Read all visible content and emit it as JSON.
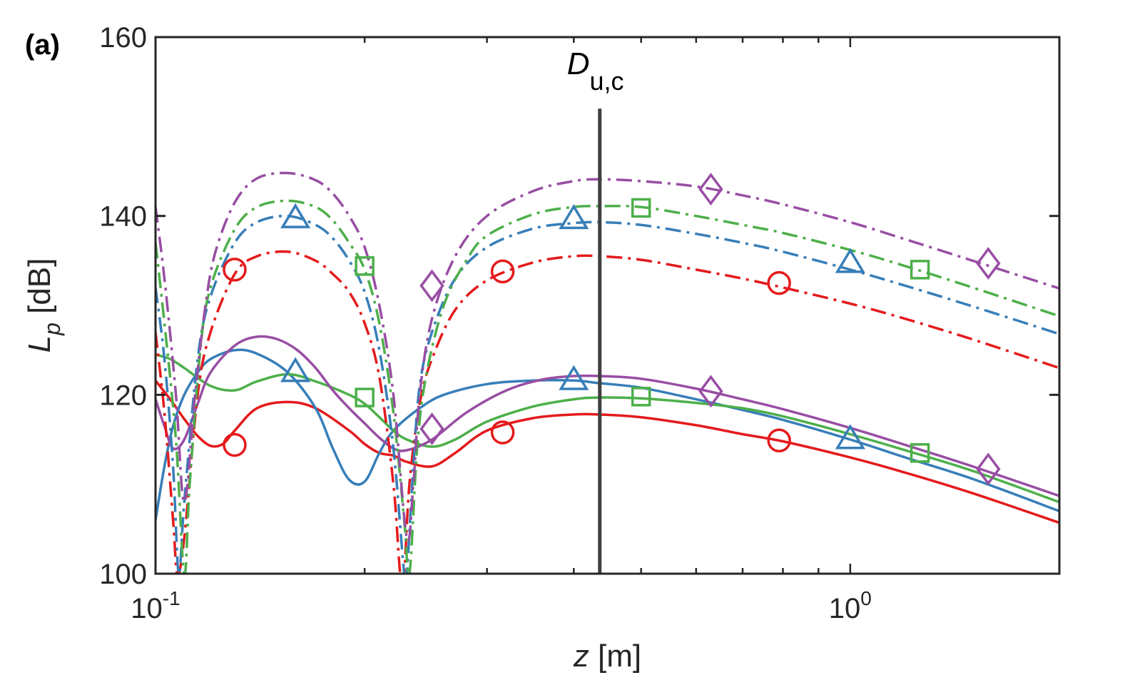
{
  "chart_data": {
    "type": "line",
    "panel_label": "(a)",
    "xscale": "log",
    "xlim": [
      0.1,
      2.0
    ],
    "ylim": [
      100,
      160
    ],
    "yticks": [
      100,
      120,
      140,
      160
    ],
    "xticks": [
      {
        "value": 0.1,
        "base": "10",
        "exp": "-1"
      },
      {
        "value": 1.0,
        "base": "10",
        "exp": "0"
      }
    ],
    "xlabel": {
      "var": "z",
      "unit": " [m]"
    },
    "ylabel": {
      "var": "L",
      "sub": "p",
      "unit": " [dB]"
    },
    "vline": {
      "x": 0.436,
      "y_top": 152,
      "label": "D",
      "label_sub": "u,c"
    },
    "series": [
      {
        "name": "red-solid",
        "color": "#e41a1c",
        "style": "solid",
        "marker": "circle",
        "x": [
          0.1,
          0.105,
          0.11,
          0.115,
          0.12,
          0.125,
          0.13,
          0.14,
          0.155,
          0.17,
          0.19,
          0.2,
          0.21,
          0.22,
          0.23,
          0.25,
          0.27,
          0.3,
          0.35,
          0.4,
          0.436,
          0.5,
          0.6,
          0.7,
          0.8,
          1.0,
          1.2,
          1.5,
          2.0
        ],
        "y": [
          121.6,
          119.5,
          117.3,
          115.4,
          114.3,
          114.5,
          116.0,
          118.5,
          119.2,
          118.5,
          116.0,
          114.5,
          113.5,
          113.2,
          112.5,
          112.0,
          113.5,
          116.0,
          117.4,
          117.8,
          117.8,
          117.5,
          116.6,
          115.6,
          114.8,
          113.0,
          111.3,
          109.0,
          105.7
        ],
        "markers_x": [
          0.13,
          0.316,
          0.79
        ],
        "markers_y": [
          114.4,
          115.8,
          114.9
        ]
      },
      {
        "name": "blue-solid",
        "color": "#377eb8",
        "style": "solid",
        "marker": "triangle",
        "x": [
          0.1,
          0.103,
          0.106,
          0.11,
          0.115,
          0.12,
          0.13,
          0.14,
          0.155,
          0.17,
          0.18,
          0.19,
          0.2,
          0.21,
          0.22,
          0.24,
          0.26,
          0.3,
          0.35,
          0.4,
          0.436,
          0.5,
          0.6,
          0.7,
          0.8,
          1.0,
          1.2,
          1.5,
          2.0
        ],
        "y": [
          106.0,
          112.0,
          116.5,
          120.0,
          122.5,
          124.0,
          125.0,
          124.6,
          122.5,
          118.5,
          114.0,
          110.5,
          110.3,
          113.5,
          116.0,
          118.5,
          120.0,
          121.2,
          121.6,
          121.6,
          121.3,
          120.8,
          119.5,
          118.3,
          117.2,
          115.0,
          113.0,
          110.6,
          107.0
        ],
        "markers_x": [
          0.159,
          0.4,
          1.0
        ],
        "markers_y": [
          122.6,
          121.7,
          115.1
        ]
      },
      {
        "name": "green-solid",
        "color": "#4daf4a",
        "style": "solid",
        "marker": "square",
        "x": [
          0.1,
          0.105,
          0.11,
          0.12,
          0.13,
          0.14,
          0.155,
          0.17,
          0.19,
          0.2,
          0.21,
          0.22,
          0.23,
          0.25,
          0.27,
          0.3,
          0.35,
          0.4,
          0.436,
          0.5,
          0.6,
          0.7,
          0.8,
          1.0,
          1.2,
          1.5,
          2.0
        ],
        "y": [
          124.5,
          124.0,
          123.0,
          121.0,
          120.5,
          121.5,
          122.3,
          121.5,
          120.0,
          119.0,
          117.5,
          116.0,
          115.0,
          114.2,
          115.0,
          117.0,
          118.7,
          119.5,
          119.7,
          119.6,
          119.1,
          118.5,
          117.6,
          115.6,
          113.8,
          111.5,
          108.0
        ],
        "markers_x": [
          0.2,
          0.5,
          1.26
        ],
        "markers_y": [
          119.7,
          119.8,
          113.5
        ]
      },
      {
        "name": "purple-solid",
        "color": "#984ea3",
        "style": "solid",
        "marker": "diamond",
        "x": [
          0.1,
          0.103,
          0.106,
          0.11,
          0.115,
          0.12,
          0.13,
          0.14,
          0.15,
          0.16,
          0.17,
          0.18,
          0.19,
          0.2,
          0.21,
          0.22,
          0.23,
          0.25,
          0.28,
          0.32,
          0.36,
          0.4,
          0.436,
          0.5,
          0.6,
          0.7,
          0.8,
          1.0,
          1.2,
          1.5,
          2.0
        ],
        "y": [
          119.5,
          116.5,
          114.0,
          115.0,
          119.0,
          122.5,
          125.5,
          126.5,
          126.2,
          125.0,
          123.0,
          120.5,
          118.5,
          116.8,
          115.2,
          114.0,
          113.8,
          115.0,
          118.0,
          120.5,
          121.7,
          122.1,
          122.1,
          121.8,
          120.7,
          119.5,
          118.4,
          116.3,
          114.4,
          112.0,
          108.7
        ],
        "markers_x": [
          0.25,
          0.63,
          1.58
        ],
        "markers_y": [
          116.2,
          120.4,
          111.7
        ]
      },
      {
        "name": "red-dashdot",
        "color": "#e41a1c",
        "style": "dashdot",
        "marker": "circle",
        "x": [
          0.1,
          0.103,
          0.106,
          0.1075,
          0.11,
          0.115,
          0.12,
          0.13,
          0.14,
          0.155,
          0.17,
          0.18,
          0.19,
          0.2,
          0.21,
          0.22,
          0.225,
          0.228,
          0.232,
          0.24,
          0.25,
          0.27,
          0.3,
          0.35,
          0.4,
          0.436,
          0.5,
          0.6,
          0.7,
          0.8,
          1.0,
          1.2,
          1.5,
          2.0
        ],
        "y": [
          127.0,
          118.0,
          106.0,
          100.0,
          104.0,
          120.0,
          127.0,
          133.5,
          135.5,
          136.0,
          135.0,
          133.5,
          131.5,
          128.0,
          122.0,
          110.0,
          100.0,
          100.0,
          110.0,
          119.0,
          124.0,
          129.5,
          132.8,
          134.8,
          135.5,
          135.5,
          135.1,
          134.0,
          133.0,
          132.0,
          130.2,
          128.5,
          126.2,
          123.0
        ],
        "markers_x": [
          0.13,
          0.316,
          0.79
        ],
        "markers_y": [
          134.0,
          133.8,
          132.5
        ]
      },
      {
        "name": "blue-dashdot",
        "color": "#377eb8",
        "style": "dashdot",
        "marker": "triangle",
        "x": [
          0.1,
          0.103,
          0.106,
          0.108,
          0.11,
          0.115,
          0.12,
          0.13,
          0.14,
          0.155,
          0.17,
          0.18,
          0.19,
          0.2,
          0.21,
          0.22,
          0.228,
          0.23,
          0.235,
          0.24,
          0.25,
          0.27,
          0.3,
          0.35,
          0.4,
          0.436,
          0.5,
          0.6,
          0.7,
          0.8,
          1.0,
          1.2,
          1.5,
          2.0
        ],
        "y": [
          132.0,
          124.0,
          112.0,
          100.0,
          108.0,
          124.0,
          131.0,
          137.0,
          139.3,
          140.0,
          139.0,
          137.5,
          135.0,
          131.5,
          125.0,
          114.0,
          100.0,
          100.0,
          112.0,
          121.0,
          127.0,
          133.0,
          136.5,
          138.6,
          139.2,
          139.3,
          139.0,
          138.0,
          137.0,
          136.0,
          134.0,
          132.2,
          129.9,
          126.8
        ],
        "markers_x": [
          0.159,
          0.4,
          1.0
        ],
        "markers_y": [
          139.8,
          139.7,
          134.8
        ]
      },
      {
        "name": "green-dashdot",
        "color": "#4daf4a",
        "style": "dashdot",
        "marker": "square",
        "x": [
          0.1,
          0.103,
          0.107,
          0.11,
          0.112,
          0.116,
          0.12,
          0.13,
          0.14,
          0.155,
          0.17,
          0.18,
          0.19,
          0.2,
          0.21,
          0.22,
          0.228,
          0.232,
          0.238,
          0.245,
          0.26,
          0.28,
          0.3,
          0.35,
          0.4,
          0.436,
          0.5,
          0.6,
          0.7,
          0.8,
          1.0,
          1.2,
          1.5,
          2.0
        ],
        "y": [
          137.0,
          128.0,
          115.0,
          100.0,
          110.0,
          125.0,
          132.0,
          138.5,
          141.0,
          141.7,
          141.0,
          139.5,
          137.0,
          134.0,
          128.0,
          118.0,
          106.0,
          100.0,
          114.0,
          122.0,
          130.0,
          135.0,
          137.8,
          140.2,
          141.0,
          141.1,
          141.0,
          140.0,
          139.0,
          138.1,
          136.2,
          134.4,
          132.0,
          128.8
        ],
        "markers_x": [
          0.2,
          0.5,
          1.26
        ],
        "markers_y": [
          134.4,
          140.9,
          134.0
        ]
      },
      {
        "name": "purple-dashdot",
        "color": "#984ea3",
        "style": "dashdot",
        "marker": "diamond",
        "x": [
          0.1,
          0.103,
          0.107,
          0.11,
          0.114,
          0.118,
          0.122,
          0.13,
          0.14,
          0.155,
          0.17,
          0.18,
          0.19,
          0.2,
          0.21,
          0.22,
          0.23,
          0.235,
          0.24,
          0.25,
          0.27,
          0.3,
          0.35,
          0.4,
          0.436,
          0.5,
          0.6,
          0.7,
          0.8,
          1.0,
          1.2,
          1.5,
          2.0
        ],
        "y": [
          141.0,
          133.0,
          120.0,
          108.0,
          120.0,
          130.0,
          136.0,
          141.5,
          144.2,
          144.8,
          144.0,
          142.5,
          140.0,
          136.5,
          130.0,
          120.0,
          104.0,
          110.0,
          120.0,
          128.5,
          135.5,
          140.0,
          142.8,
          143.9,
          144.1,
          143.9,
          143.3,
          142.3,
          141.3,
          139.3,
          137.4,
          135.0,
          131.9
        ],
        "markers_x": [
          0.25,
          0.63,
          1.58
        ],
        "markers_y": [
          132.2,
          143.0,
          134.7
        ]
      }
    ]
  }
}
